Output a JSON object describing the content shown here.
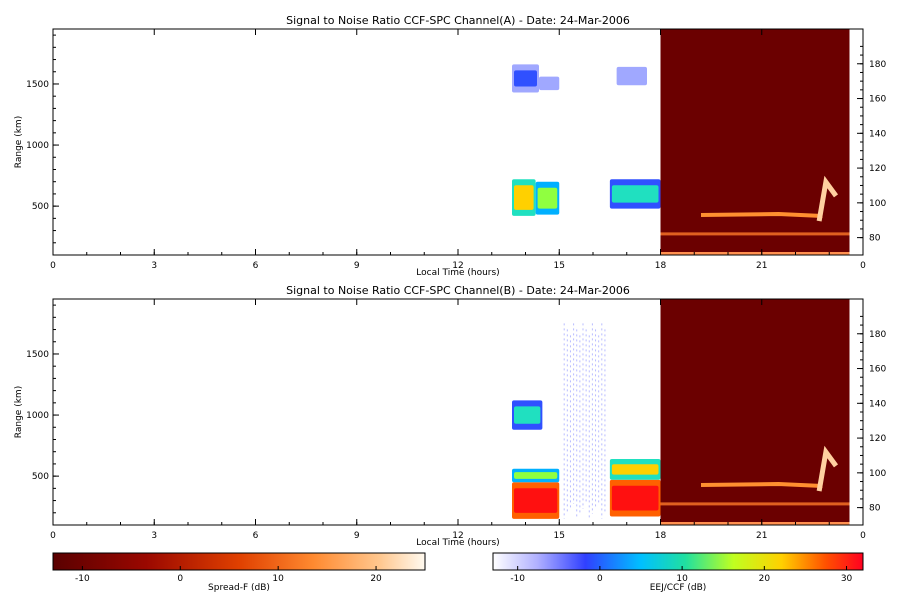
{
  "chart_data": [
    {
      "type": "heatmap",
      "title": "Signal to Noise Ratio CCF-SPC Channel(A) - Date: 24-Mar-2006",
      "xlabel": "Local Time (hours)",
      "ylabel": "Range (km)",
      "xlim": [
        0,
        24
      ],
      "ylim": [
        100,
        1950
      ],
      "x_ticks": [
        "0",
        "3",
        "6",
        "9",
        "12",
        "15",
        "18",
        "21",
        "0"
      ],
      "y_ticks": [
        "500",
        "1000",
        "1500"
      ],
      "y2_ticks": [
        "80",
        "100",
        "120",
        "140",
        "160",
        "180"
      ],
      "y2lim": [
        70,
        200
      ],
      "regions": [
        {
          "x": [
            13.6,
            14.3
          ],
          "y": [
            420,
            720
          ],
          "snr_db": 12
        },
        {
          "x": [
            14.3,
            15.0
          ],
          "y": [
            430,
            700
          ],
          "snr_db": 8
        },
        {
          "x": [
            13.6,
            14.4
          ],
          "y": [
            1430,
            1660
          ],
          "snr_db": -2
        },
        {
          "x": [
            14.4,
            15.0
          ],
          "y": [
            1450,
            1560
          ],
          "snr_db": -6
        },
        {
          "x": [
            16.5,
            18.0
          ],
          "y": [
            480,
            720
          ],
          "snr_db": 6
        },
        {
          "x": [
            16.7,
            17.6
          ],
          "y": [
            1490,
            1640
          ],
          "snr_db": -6
        }
      ],
      "night_block": {
        "x": [
          18.0,
          23.6
        ],
        "ylim2": [
          70,
          200
        ],
        "background_db": -12
      },
      "eej_echo": {
        "x": [
          18.0,
          23.6
        ],
        "height_km": [
          80,
          112
        ],
        "peak_db": 22
      }
    },
    {
      "type": "heatmap",
      "title": "Signal to Noise Ratio CCF-SPC Channel(B) - Date: 24-Mar-2006",
      "xlabel": "Local Time (hours)",
      "ylabel": "Range (km)",
      "xlim": [
        0,
        24
      ],
      "ylim": [
        100,
        1950
      ],
      "x_ticks": [
        "0",
        "3",
        "6",
        "9",
        "12",
        "15",
        "18",
        "21",
        "0"
      ],
      "y_ticks": [
        "500",
        "1000",
        "1500"
      ],
      "y2_ticks": [
        "80",
        "100",
        "120",
        "140",
        "160",
        "180"
      ],
      "y2lim": [
        70,
        200
      ],
      "regions": [
        {
          "x": [
            13.6,
            15.0
          ],
          "y": [
            150,
            450
          ],
          "snr_db": 30
        },
        {
          "x": [
            13.6,
            15.0
          ],
          "y": [
            450,
            560
          ],
          "snr_db": 10
        },
        {
          "x": [
            13.6,
            14.5
          ],
          "y": [
            880,
            1120
          ],
          "snr_db": 6
        },
        {
          "x": [
            16.5,
            18.0
          ],
          "y": [
            170,
            470
          ],
          "snr_db": 28
        },
        {
          "x": [
            16.5,
            18.0
          ],
          "y": [
            470,
            640
          ],
          "snr_db": 14
        },
        {
          "x": [
            15.1,
            16.4
          ],
          "y": [
            150,
            1750
          ],
          "snr_db": -10
        }
      ],
      "night_block": {
        "x": [
          18.0,
          23.6
        ],
        "ylim2": [
          70,
          200
        ],
        "background_db": -12
      },
      "eej_echo": {
        "x": [
          18.0,
          23.6
        ],
        "height_km": [
          80,
          112
        ],
        "peak_db": 22
      }
    }
  ],
  "colorbars": [
    {
      "label": "Spread-F (dB)",
      "range": [
        -13,
        25
      ],
      "ticks": [
        "-10",
        "0",
        "10",
        "20"
      ],
      "colormap": "hot"
    },
    {
      "label": "EEJ/CCF (dB)",
      "range": [
        -13,
        32
      ],
      "ticks": [
        "-10",
        "0",
        "10",
        "20",
        "30"
      ],
      "colormap": "jet"
    }
  ],
  "colors": {
    "night_background": "#6b0000",
    "echo_hot": "#ff9030",
    "strong": "#ff1000",
    "weak": "#7080ff"
  }
}
